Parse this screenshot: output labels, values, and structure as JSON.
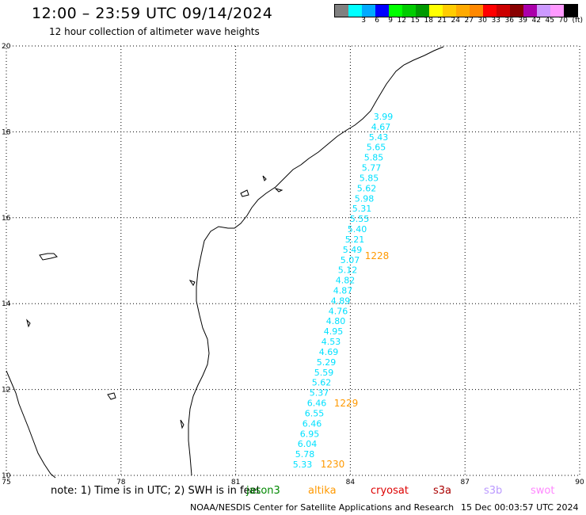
{
  "header": {
    "title": "12:00 – 23:59 UTC 09/14/2024",
    "subtitle": "12 hour collection of altimeter wave heights"
  },
  "legend": {
    "unit": "(ft)",
    "bins": [
      {
        "label": "",
        "color": "#808080"
      },
      {
        "label": "3",
        "color": "#00ffff"
      },
      {
        "label": "6",
        "color": "#00aaff"
      },
      {
        "label": "9",
        "color": "#0000ff"
      },
      {
        "label": "12",
        "color": "#00ff00"
      },
      {
        "label": "15",
        "color": "#00cc00"
      },
      {
        "label": "18",
        "color": "#009900"
      },
      {
        "label": "21",
        "color": "#ffff00"
      },
      {
        "label": "24",
        "color": "#ffcc00"
      },
      {
        "label": "27",
        "color": "#ffaa00"
      },
      {
        "label": "30",
        "color": "#ff8800"
      },
      {
        "label": "33",
        "color": "#ff0000"
      },
      {
        "label": "36",
        "color": "#cc0000"
      },
      {
        "label": "39",
        "color": "#880000"
      },
      {
        "label": "42",
        "color": "#aa00aa"
      },
      {
        "label": "45",
        "color": "#cc99ff"
      },
      {
        "label": "70",
        "color": "#ff99ff"
      },
      {
        "label": "",
        "color": "#000000"
      }
    ]
  },
  "axes": {
    "lon_labels": [
      "75",
      "78",
      "81",
      "84",
      "87",
      "90"
    ],
    "lat_labels": [
      "20",
      "18",
      "16",
      "14",
      "12",
      "10"
    ],
    "lon_range": [
      75,
      90
    ],
    "lat_range": [
      10,
      20
    ]
  },
  "measurements": {
    "color": "#00e0ff",
    "values": [
      "3.99",
      "4.67",
      "5.43",
      "5.65",
      "5.85",
      "5.77",
      "5.85",
      "5.62",
      "5.98",
      "5.31",
      "5.55",
      "5.40",
      "5.21",
      "5.49",
      "5.07",
      "5.12",
      "4.82",
      "4.87",
      "4.89",
      "4.76",
      "4.80",
      "4.95",
      "4.53",
      "4.69",
      "5.29",
      "5.59",
      "5.62",
      "5.37",
      "6.46",
      "6.55",
      "6.46",
      "6.95",
      "6.04",
      "5.78",
      "5.33"
    ],
    "positions_note": ""
  },
  "time_labels": {
    "color": "#ff9900",
    "items": [
      "1228",
      "1229",
      "1230"
    ]
  },
  "footer": {
    "note": "note:  1) Time is in UTC;  2) SWH is in feet",
    "satellites": [
      {
        "name": "jason3",
        "color": "#008800"
      },
      {
        "name": "altika",
        "color": "#ff9900"
      },
      {
        "name": "cryosat",
        "color": "#dd0000"
      },
      {
        "name": "s3a",
        "color": "#aa0000"
      },
      {
        "name": "s3b",
        "color": "#bb99ff"
      },
      {
        "name": "swot",
        "color": "#ff88ff"
      }
    ],
    "credit": "NOAA/NESDIS Center for Satellite Applications and Research",
    "timestamp": "15 Dec 00:03:57 UTC 2024"
  }
}
